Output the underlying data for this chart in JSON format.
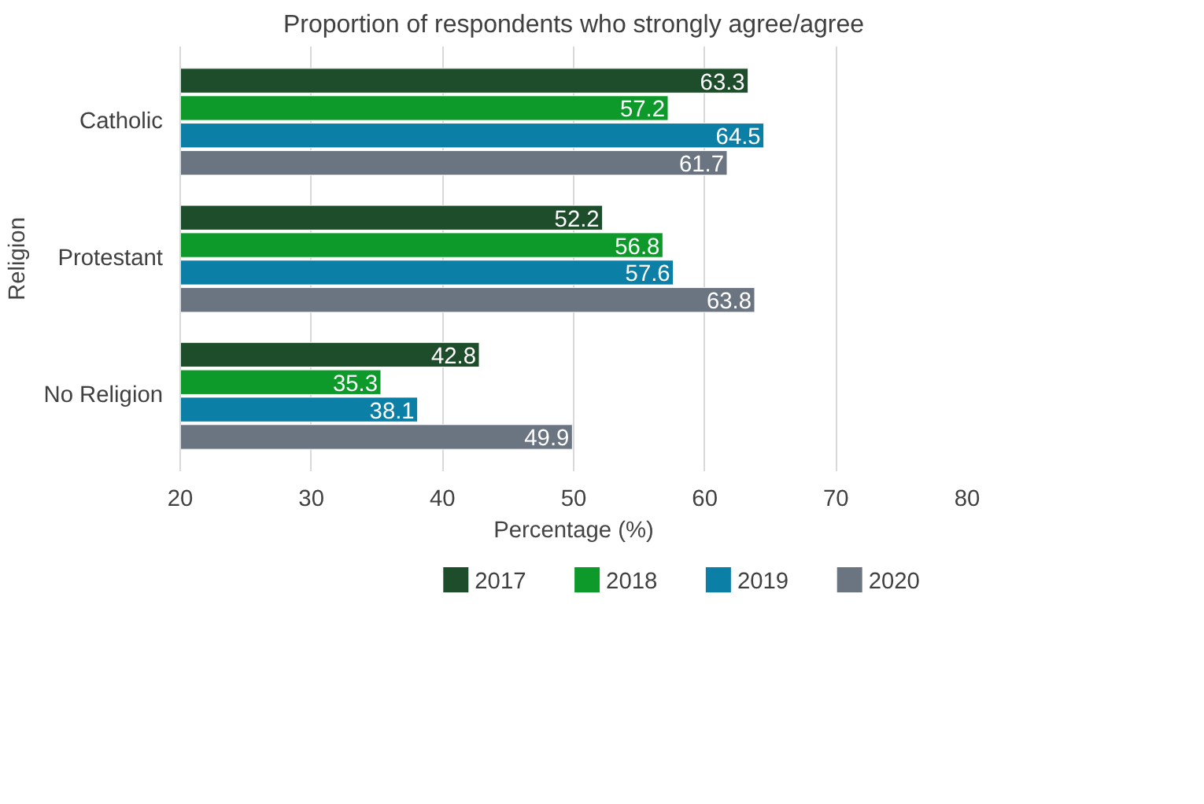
{
  "chart_data": {
    "type": "bar",
    "orientation": "horizontal",
    "title": "Proportion of respondents who strongly agree/agree",
    "xlabel": "Percentage (%)",
    "ylabel": "Religion",
    "categories": [
      "Catholic",
      "Protestant",
      "No Religion"
    ],
    "series": [
      {
        "name": "2017",
        "color": "#1e4d2b",
        "values": [
          63.3,
          52.2,
          42.8
        ]
      },
      {
        "name": "2018",
        "color": "#0e9a2a",
        "values": [
          57.2,
          56.8,
          35.3
        ]
      },
      {
        "name": "2019",
        "color": "#0b7fa6",
        "values": [
          64.5,
          57.6,
          38.1
        ]
      },
      {
        "name": "2020",
        "color": "#6b7582",
        "values": [
          61.7,
          63.8,
          49.9
        ]
      }
    ],
    "xlim": [
      20,
      80
    ],
    "xticks": [
      20,
      30,
      40,
      50,
      60,
      70,
      80
    ],
    "grid": "x",
    "legend": "bottom",
    "data_labels": true
  }
}
